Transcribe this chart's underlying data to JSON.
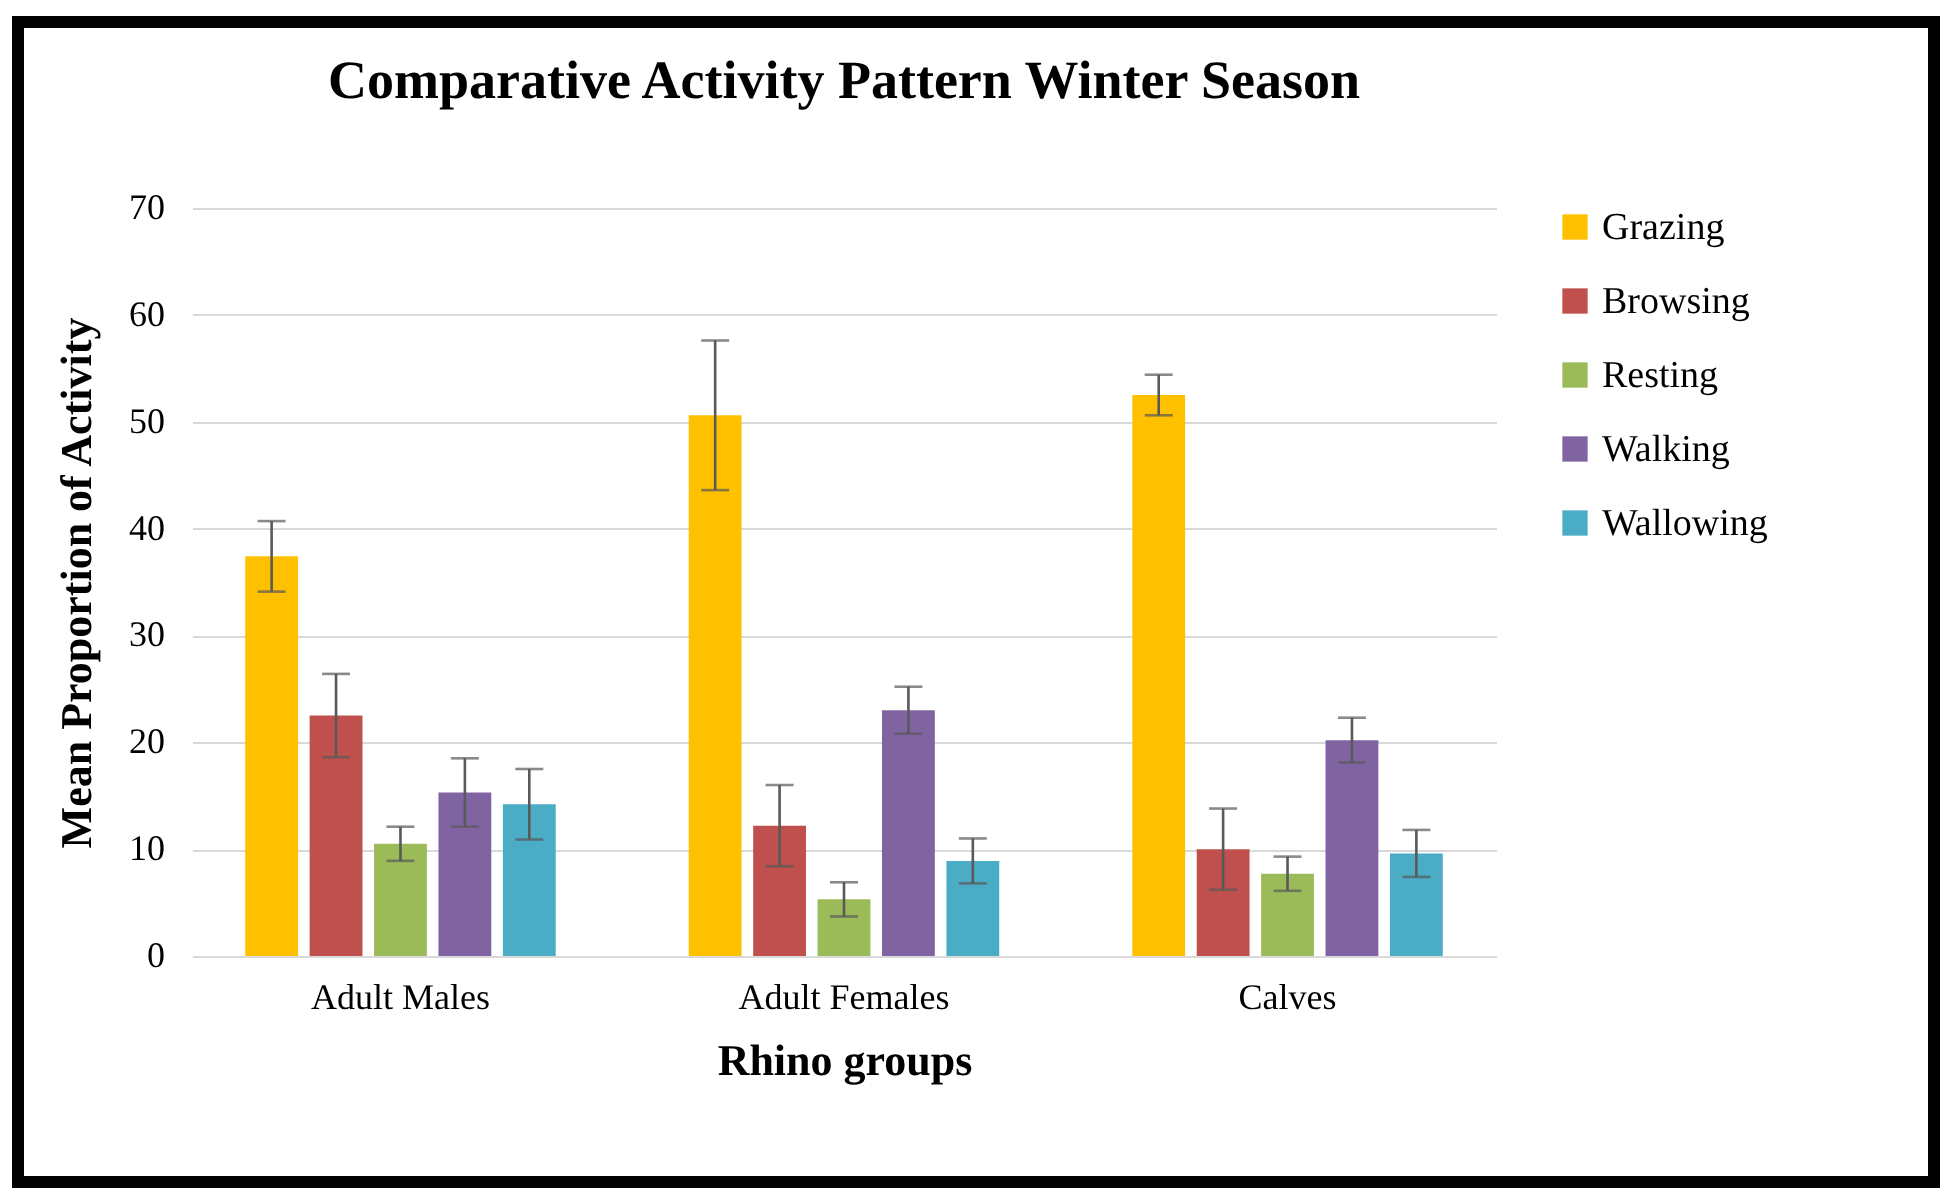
{
  "chart_data": {
    "type": "bar",
    "title": "Comparative Activity Pattern Winter Season",
    "xlabel": "Rhino groups",
    "ylabel": "Mean Proportion of Activity",
    "categories": [
      "Adult Males",
      "Adult Females",
      "Calves"
    ],
    "series": [
      {
        "name": "Grazing",
        "color": "#ffc000",
        "values": [
          37.4,
          50.6,
          52.5
        ],
        "errors": [
          3.3,
          7.0,
          1.9
        ]
      },
      {
        "name": "Browsing",
        "color": "#c0504d",
        "values": [
          22.5,
          12.2,
          10.0
        ],
        "errors": [
          3.9,
          3.8,
          3.8
        ]
      },
      {
        "name": "Resting",
        "color": "#9bbb59",
        "values": [
          10.5,
          5.3,
          7.7
        ],
        "errors": [
          1.6,
          1.6,
          1.6
        ]
      },
      {
        "name": "Walking",
        "color": "#8064a2",
        "values": [
          15.3,
          23.0,
          20.2
        ],
        "errors": [
          3.2,
          2.2,
          2.1
        ]
      },
      {
        "name": "Wallowing",
        "color": "#4bacc6",
        "values": [
          14.2,
          8.9,
          9.6
        ],
        "errors": [
          3.3,
          2.1,
          2.2
        ]
      }
    ],
    "ylim": [
      0,
      70
    ],
    "yticks": [
      0,
      10,
      20,
      30,
      40,
      50,
      60,
      70
    ],
    "grid": "y",
    "legend": "right"
  }
}
